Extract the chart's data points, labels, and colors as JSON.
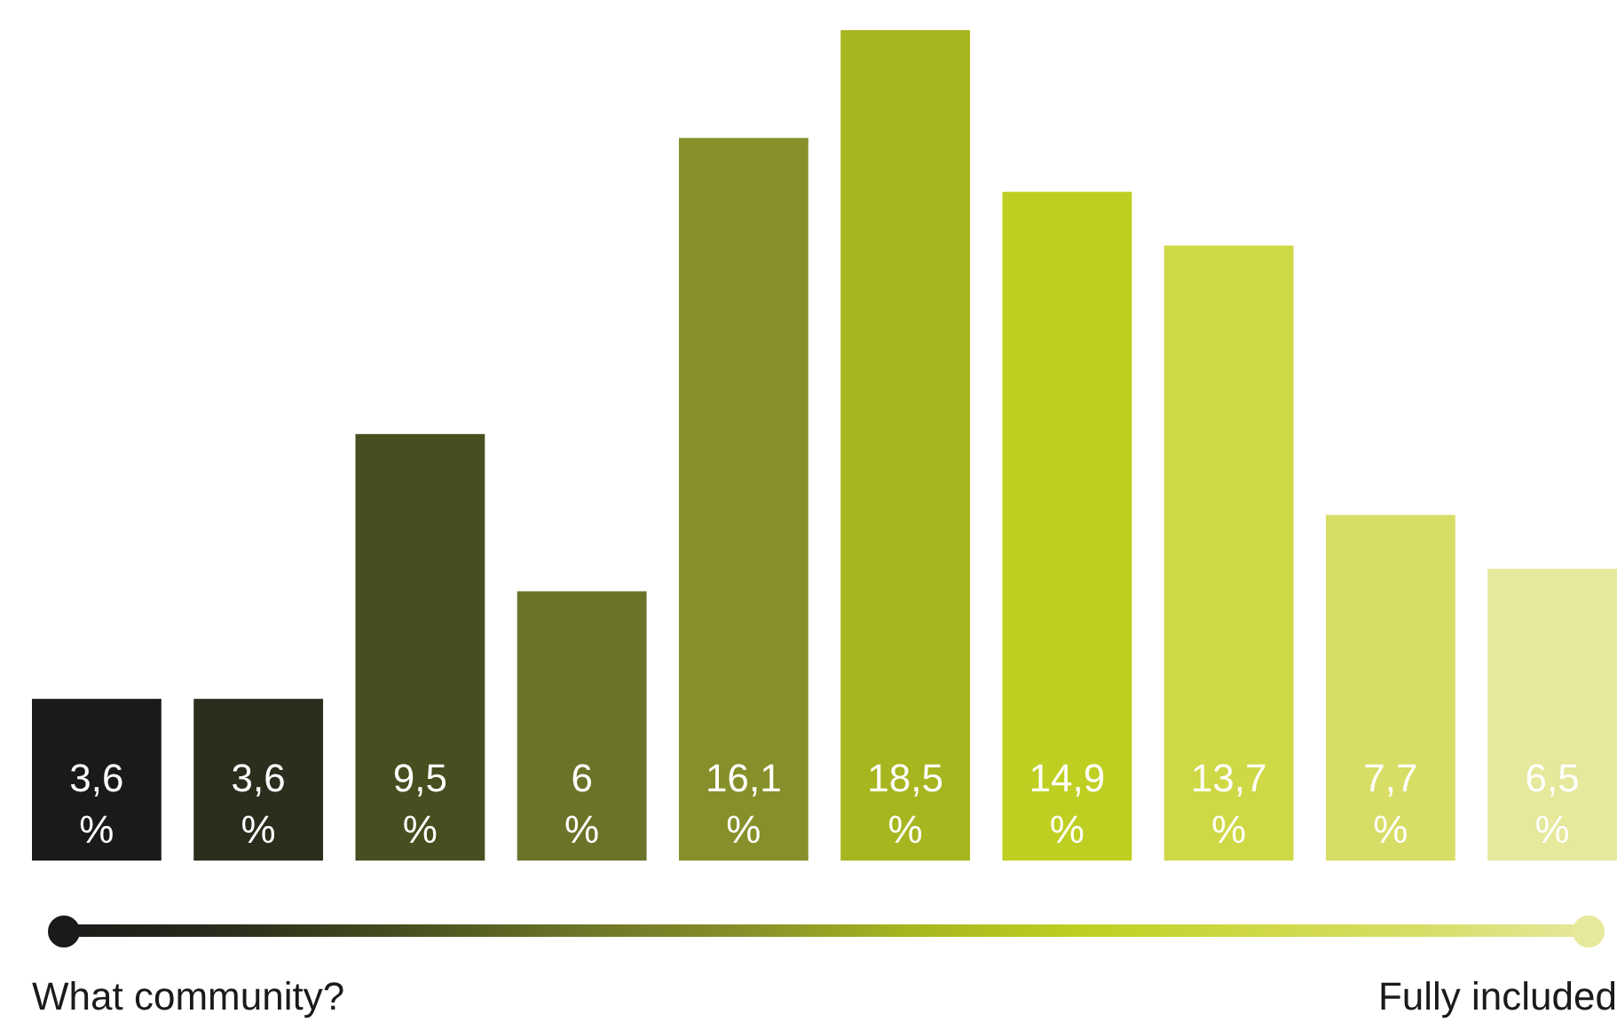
{
  "chart_data": {
    "type": "bar",
    "categories": [
      null,
      null,
      null,
      null,
      null,
      null,
      null,
      null,
      null,
      null
    ],
    "values": [
      3.6,
      3.6,
      9.5,
      6,
      16.1,
      18.5,
      14.9,
      13.7,
      7.7,
      6.5
    ],
    "value_labels": [
      "3,6 %",
      "3,6 %",
      "9,5 %",
      "6 %",
      "16,1 %",
      "18,5 %",
      "14,9 %",
      "13,7 %",
      "7,7 %",
      "6,5 %"
    ],
    "colors": [
      "#1a1a1a",
      "#2b2e1c",
      "#474e1f",
      "#6b7328",
      "#878f2a",
      "#a7b51f",
      "#bfcf22",
      "#cfd845",
      "#d8dd66",
      "#e6e89b"
    ],
    "annotations": [
      "What community?",
      "Fully included"
    ],
    "tick_labels": false
  }
}
